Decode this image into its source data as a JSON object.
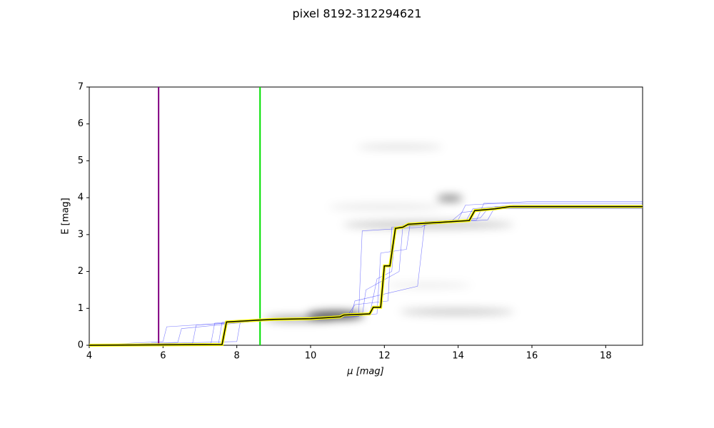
{
  "chart_data": {
    "type": "line",
    "title": "pixel 8192-312294621",
    "x_label": "μ [mag]",
    "y_label": "E [mag]",
    "xlim": [
      4,
      19
    ],
    "ylim": [
      0,
      7
    ],
    "xticks": [
      4,
      6,
      8,
      10,
      12,
      14,
      16,
      18
    ],
    "yticks": [
      0,
      1,
      2,
      3,
      4,
      5,
      6,
      7
    ],
    "vlines": [
      {
        "value": 5.88,
        "color": "#800080"
      },
      {
        "value": 8.63,
        "color": "#00e000"
      }
    ],
    "series": [
      {
        "color": "#000000",
        "outline": "#ffff00",
        "x": [
          4,
          7.6,
          7.72,
          8.6,
          9,
          10,
          10.8,
          10.9,
          11.6,
          11.7,
          11.9,
          12.0,
          12.15,
          12.3,
          12.5,
          12.65,
          13,
          13.5,
          14.3,
          14.45,
          15,
          15.4,
          19
        ],
        "values": [
          0,
          0.02,
          0.63,
          0.68,
          0.7,
          0.72,
          0.77,
          0.82,
          0.85,
          1.03,
          1.03,
          2.15,
          2.15,
          3.17,
          3.2,
          3.28,
          3.3,
          3.33,
          3.38,
          3.65,
          3.7,
          3.76,
          3.76
        ]
      }
    ],
    "samples": [
      {
        "color": "#0000ff",
        "x": [
          4,
          7.3,
          7.4,
          9,
          11.0,
          11.2,
          12.1,
          12.2,
          14.2,
          14.4,
          15.5,
          19
        ],
        "values": [
          0,
          0.05,
          0.6,
          0.7,
          0.8,
          1.1,
          1.2,
          3.2,
          3.35,
          3.7,
          3.8,
          3.8
        ]
      },
      {
        "color": "#0000ff",
        "x": [
          4,
          6.0,
          6.1,
          8.5,
          11.4,
          11.5,
          12.4,
          12.5,
          14.8,
          15.0,
          19
        ],
        "values": [
          0,
          0.1,
          0.5,
          0.65,
          0.8,
          1.5,
          2.0,
          3.25,
          3.4,
          3.75,
          3.75
        ]
      },
      {
        "color": "#0000ff",
        "x": [
          4,
          8.0,
          8.1,
          10.5,
          11.8,
          11.9,
          12.6,
          12.7,
          14.0,
          14.2,
          16,
          19
        ],
        "values": [
          0,
          0.1,
          0.66,
          0.75,
          0.85,
          2.5,
          2.6,
          3.3,
          3.4,
          3.8,
          3.9,
          3.9
        ]
      },
      {
        "color": "#0000ff",
        "x": [
          4,
          6.8,
          6.9,
          9.5,
          11.3,
          11.4,
          13.0,
          13.2,
          14.6,
          14.8,
          19
        ],
        "values": [
          0,
          0.05,
          0.55,
          0.7,
          0.78,
          3.1,
          3.2,
          3.3,
          3.45,
          3.7,
          3.7
        ]
      },
      {
        "color": "#0000ff",
        "x": [
          4,
          7.5,
          7.6,
          9.2,
          11.6,
          11.8,
          12.2,
          12.3,
          13.8,
          14.1,
          15.2,
          19
        ],
        "values": [
          0,
          0.02,
          0.62,
          0.7,
          0.82,
          1.8,
          2.0,
          3.2,
          3.35,
          3.6,
          3.72,
          3.72
        ]
      },
      {
        "color": "#0000ff",
        "x": [
          4,
          6.4,
          6.5,
          8.8,
          11.1,
          11.2,
          12.9,
          13.1,
          14.5,
          14.7,
          19
        ],
        "values": [
          0,
          0.08,
          0.45,
          0.68,
          0.8,
          1.2,
          1.6,
          3.35,
          3.4,
          3.85,
          3.85
        ]
      }
    ]
  }
}
